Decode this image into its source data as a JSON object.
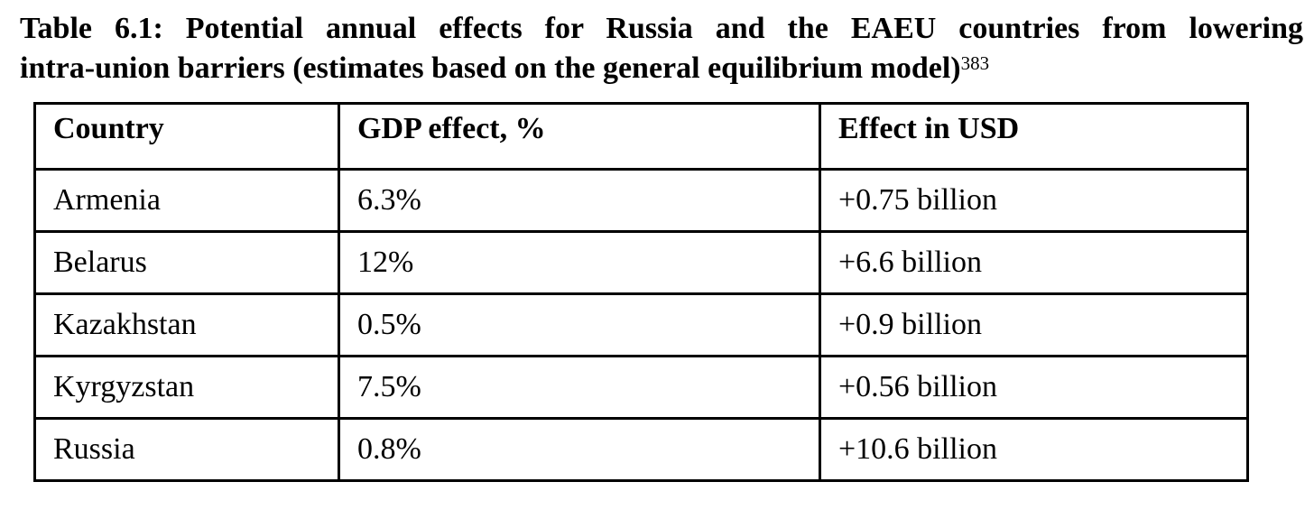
{
  "caption": {
    "line1": "Table 6.1: Potential annual effects for Russia and the EAEU countries from lowering",
    "line2": "intra-union barriers (estimates based on the general equilibrium model)",
    "footnote": "383"
  },
  "table": {
    "headers": [
      "Country",
      "GDP effect, %",
      "Effect in USD"
    ],
    "rows": [
      [
        "Armenia",
        "6.3%",
        "+0.75 billion"
      ],
      [
        "Belarus",
        "12%",
        "+6.6 billion"
      ],
      [
        "Kazakhstan",
        "0.5%",
        "+0.9 billion"
      ],
      [
        "Kyrgyzstan",
        "7.5%",
        "+0.56 billion"
      ],
      [
        "Russia",
        "0.8%",
        "+10.6 billion"
      ]
    ]
  }
}
